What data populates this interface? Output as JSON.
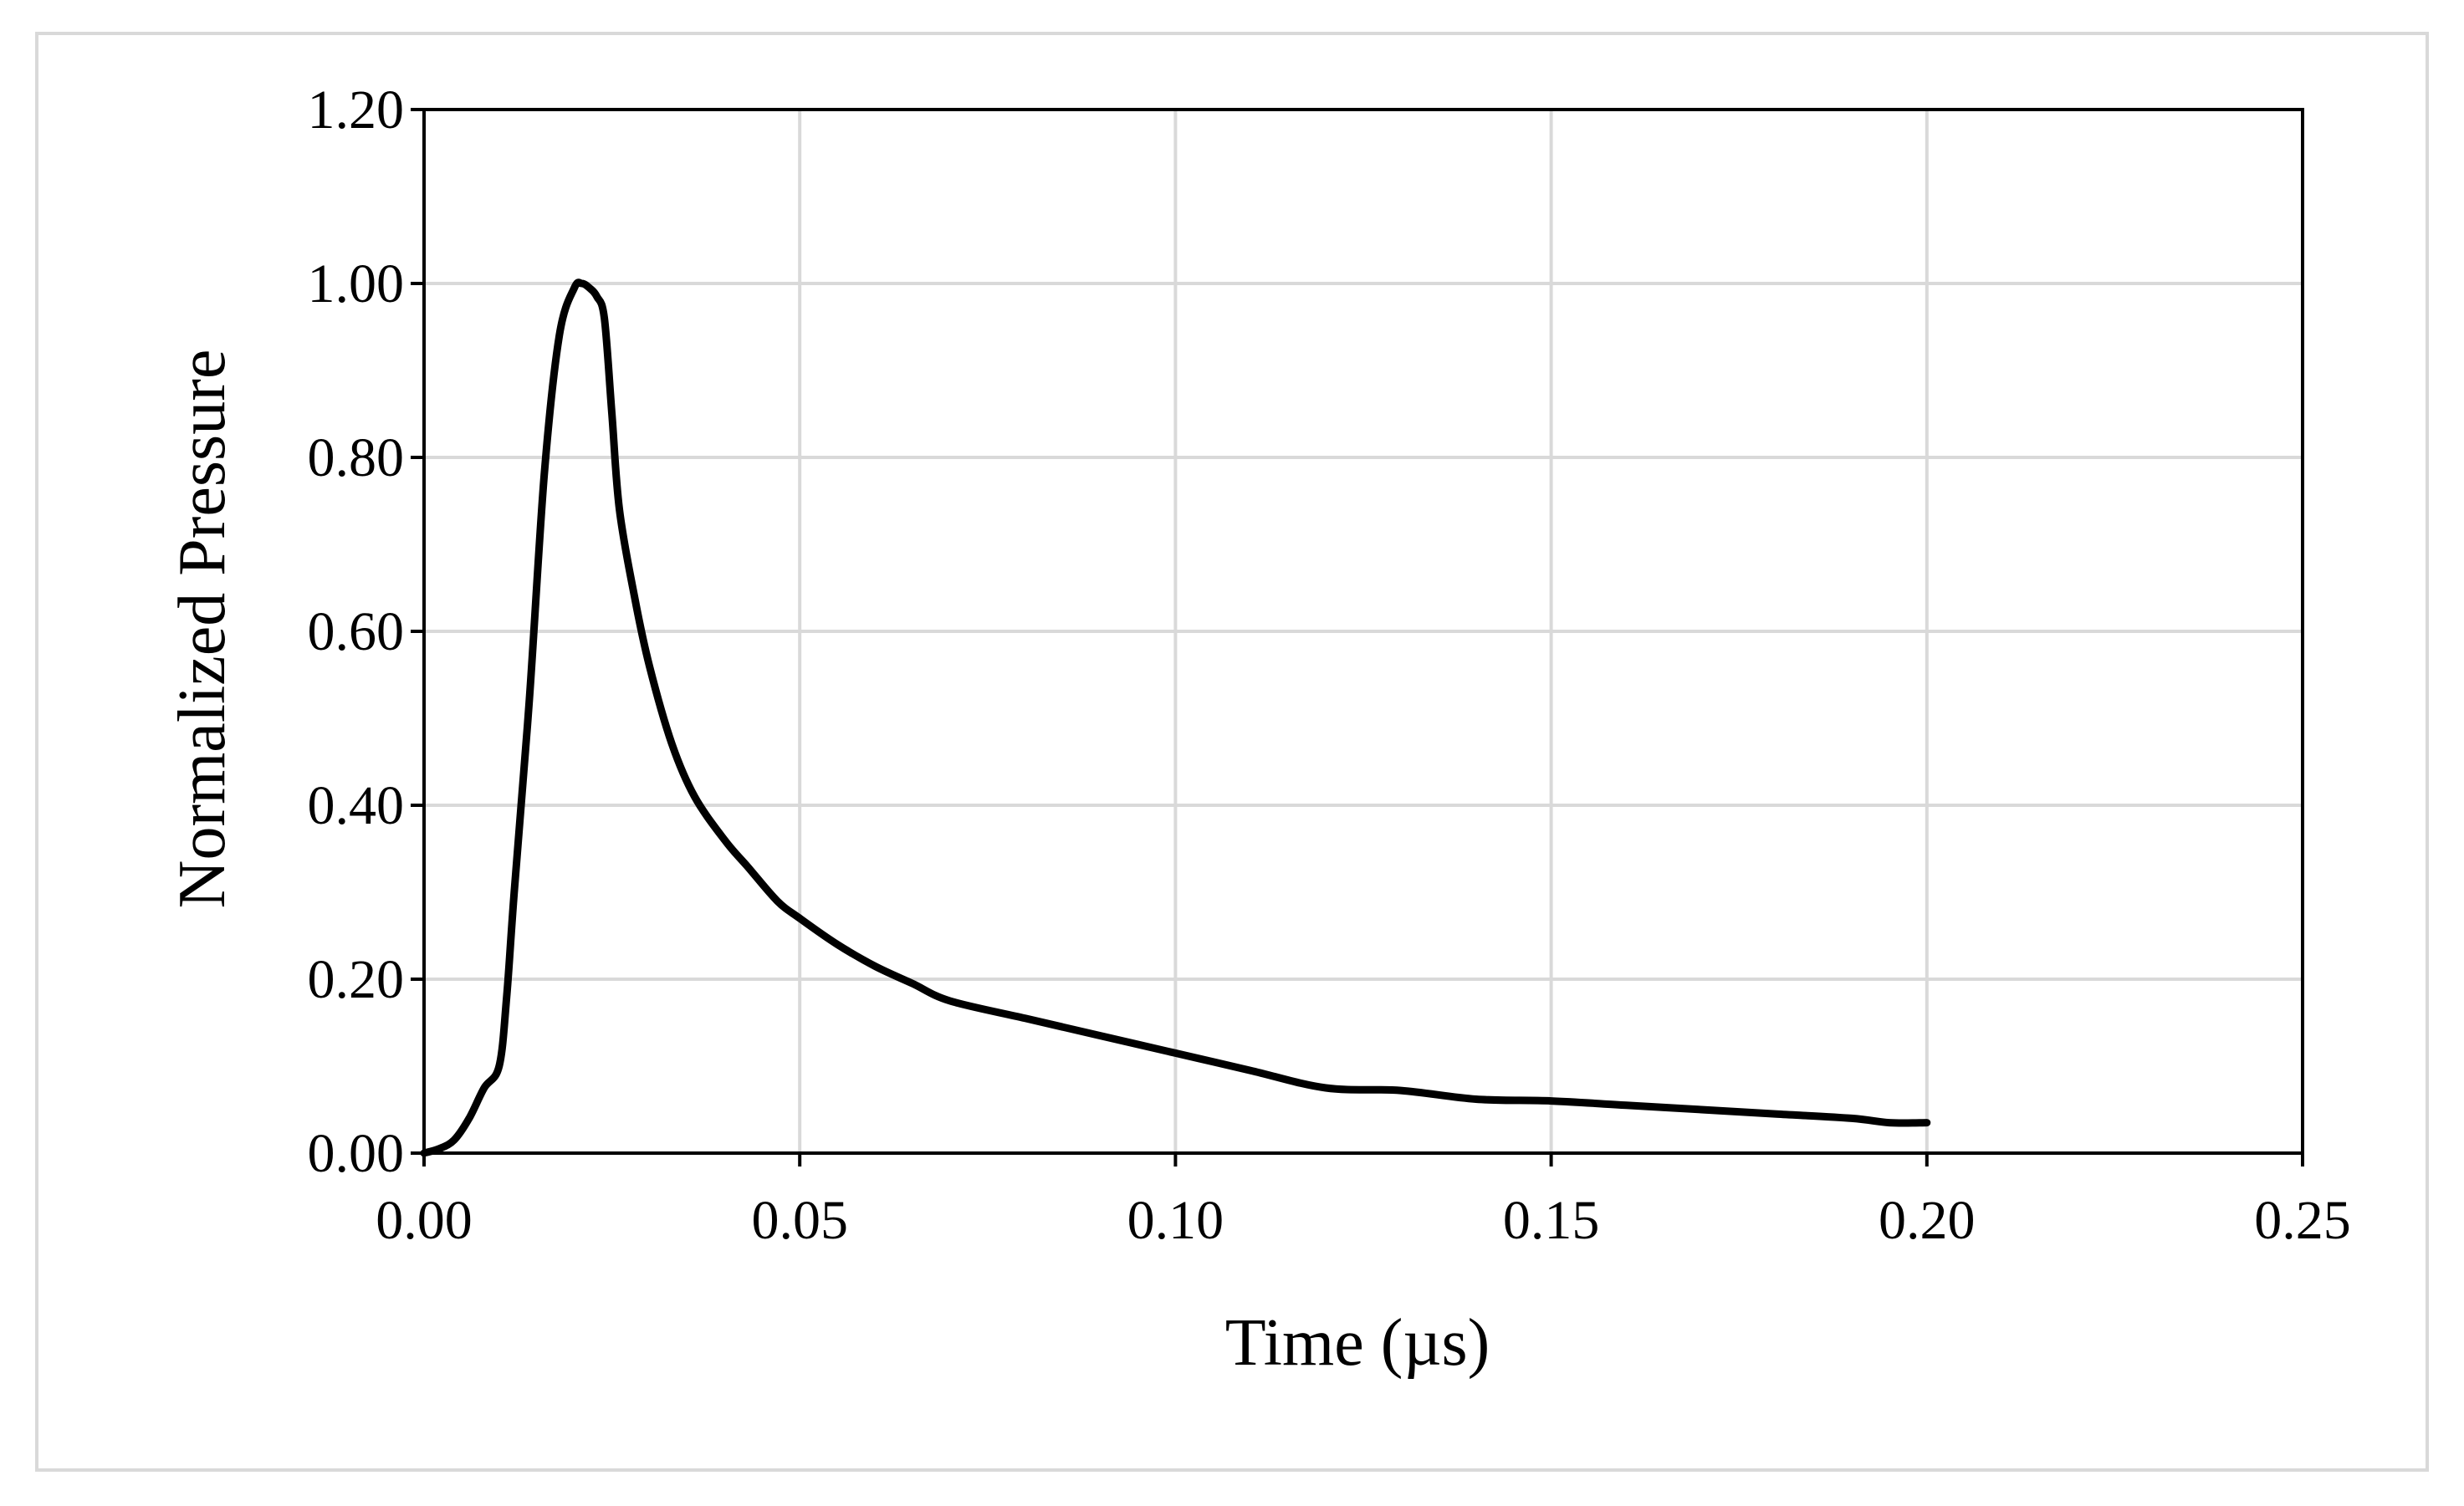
{
  "chart_data": {
    "type": "line",
    "title": "",
    "xlabel": "Time (µs)",
    "ylabel": "Normalized Pressure",
    "xlim": [
      0,
      0.25
    ],
    "ylim": [
      0,
      1.2
    ],
    "x_ticks": [
      "0.00",
      "0.05",
      "0.10",
      "0.15",
      "0.20",
      "0.25"
    ],
    "y_ticks": [
      "0.00",
      "0.20",
      "0.40",
      "0.60",
      "0.80",
      "1.00",
      "1.20"
    ],
    "grid": true,
    "legend": "none",
    "colors": {
      "line": "#000000",
      "grid": "#d9d9d9",
      "frame": "#000000"
    },
    "series": [
      {
        "x": [
          0.0,
          0.002,
          0.004,
          0.006,
          0.008,
          0.01,
          0.011,
          0.012,
          0.014,
          0.016,
          0.018,
          0.02,
          0.021,
          0.022,
          0.023,
          0.024,
          0.025,
          0.026,
          0.028,
          0.03,
          0.033,
          0.036,
          0.04,
          0.043,
          0.047,
          0.05,
          0.055,
          0.06,
          0.065,
          0.07,
          0.08,
          0.09,
          0.1,
          0.11,
          0.12,
          0.13,
          0.14,
          0.15,
          0.16,
          0.17,
          0.18,
          0.19,
          0.195,
          0.2
        ],
        "y": [
          0.0,
          0.005,
          0.015,
          0.04,
          0.075,
          0.1,
          0.18,
          0.3,
          0.52,
          0.78,
          0.94,
          0.995,
          1.0,
          0.995,
          0.985,
          0.96,
          0.85,
          0.74,
          0.64,
          0.56,
          0.47,
          0.41,
          0.36,
          0.33,
          0.29,
          0.27,
          0.24,
          0.215,
          0.195,
          0.175,
          0.155,
          0.135,
          0.115,
          0.095,
          0.075,
          0.072,
          0.062,
          0.06,
          0.055,
          0.05,
          0.045,
          0.04,
          0.035,
          0.035
        ]
      }
    ]
  }
}
